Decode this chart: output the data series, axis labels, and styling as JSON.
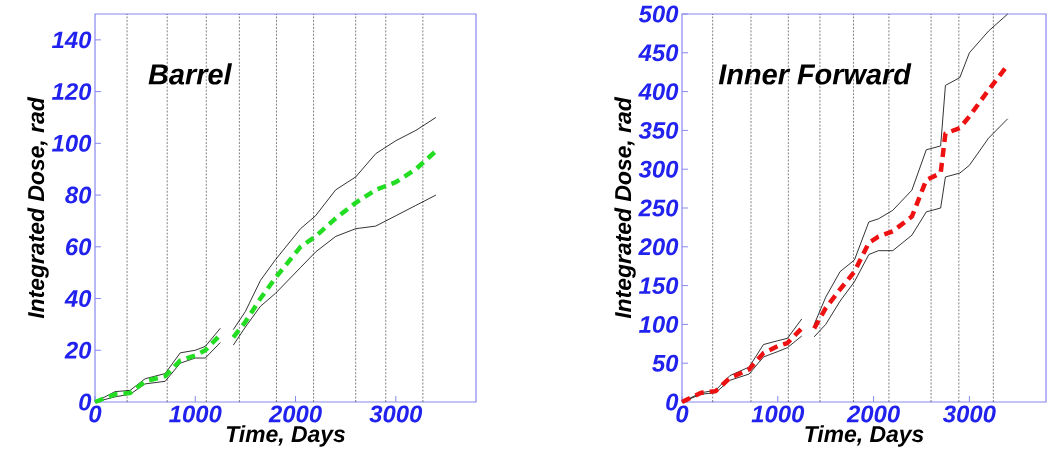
{
  "chart_data": [
    {
      "type": "line",
      "title": "Barrel",
      "xlabel": "Time, Days",
      "ylabel": "Integrated  Dose,  *rad*",
      "x": [
        0,
        200,
        350,
        500,
        700,
        850,
        1000,
        1100,
        1250,
        1300,
        1380,
        1500,
        1650,
        1800,
        2050,
        2200,
        2400,
        2600,
        2800,
        3000,
        3200,
        3400
      ],
      "series": [
        {
          "color": "#000000",
          "line_style": "solid",
          "values": [
            0,
            4,
            4.5,
            9,
            11,
            19,
            20,
            21.5,
            28.5,
            null,
            28,
            35,
            47,
            55,
            67,
            72,
            82,
            87,
            96,
            101,
            105,
            110
          ]
        },
        {
          "color": "#000000",
          "line_style": "solid",
          "values": [
            0,
            2,
            3,
            7,
            8,
            15,
            17,
            17,
            23,
            null,
            22,
            29,
            37,
            42,
            52,
            58,
            64,
            67,
            68,
            72,
            76,
            80
          ]
        },
        {
          "color": "#22dd22",
          "line_style": "dashed",
          "values": [
            0,
            3,
            3.5,
            8,
            10,
            16,
            18,
            20,
            26,
            null,
            25,
            31,
            40,
            48,
            60,
            64,
            71,
            77,
            82,
            85,
            90,
            97
          ]
        }
      ],
      "xlim": [
        0,
        3800
      ],
      "ylim": [
        0,
        150
      ],
      "xticks": [
        0,
        1000,
        2000,
        3000
      ],
      "yticks": [
        0,
        20,
        40,
        60,
        80,
        100,
        120,
        140
      ],
      "ref_lines": [
        {
          "axis": "x",
          "value": 320,
          "line_style": "dashed"
        },
        {
          "axis": "x",
          "value": 720,
          "line_style": "dashed"
        },
        {
          "axis": "x",
          "value": 1110,
          "line_style": "dashed"
        },
        {
          "axis": "x",
          "value": 1440,
          "line_style": "dashed"
        },
        {
          "axis": "x",
          "value": 1810,
          "line_style": "dashed"
        },
        {
          "axis": "x",
          "value": 2180,
          "line_style": "dashed"
        },
        {
          "axis": "x",
          "value": 2600,
          "line_style": "dashed"
        },
        {
          "axis": "x",
          "value": 2900,
          "line_style": "dashed"
        },
        {
          "axis": "x",
          "value": 3270,
          "line_style": "dashed"
        }
      ]
    },
    {
      "type": "line",
      "title": "Inner Forward",
      "xlabel": "Time, Days",
      "ylabel": "Integrated  Dose,  *rad*",
      "x": [
        0,
        200,
        350,
        500,
        700,
        850,
        1000,
        1100,
        1250,
        1300,
        1380,
        1500,
        1650,
        1800,
        1950,
        2050,
        2200,
        2400,
        2550,
        2700,
        2750,
        2900,
        3000,
        3200,
        3400
      ],
      "series": [
        {
          "color": "#000000",
          "line_style": "solid",
          "values": [
            0,
            12,
            15,
            34,
            45,
            74,
            79,
            82,
            107,
            null,
            100,
            135,
            168,
            183,
            232,
            236,
            247,
            273,
            325,
            330,
            408,
            418,
            450,
            478,
            500
          ]
        },
        {
          "color": "#000000",
          "line_style": "solid",
          "values": [
            0,
            10,
            12,
            28,
            36,
            58,
            65,
            70,
            85,
            null,
            84,
            100,
            130,
            155,
            190,
            195,
            195,
            215,
            245,
            250,
            290,
            295,
            305,
            340,
            365
          ]
        },
        {
          "color": "#ee1111",
          "line_style": "dashed",
          "values": [
            0,
            12,
            14,
            31,
            42,
            63,
            72,
            76,
            95,
            null,
            95,
            121,
            145,
            168,
            205,
            213,
            220,
            239,
            286,
            295,
            346,
            353,
            368,
            402,
            434
          ]
        }
      ],
      "xlim": [
        0,
        3800
      ],
      "ylim": [
        0,
        500
      ],
      "xticks": [
        0,
        1000,
        2000,
        3000
      ],
      "yticks": [
        0,
        50,
        100,
        150,
        200,
        250,
        300,
        350,
        400,
        450,
        500
      ],
      "ref_lines": [
        {
          "axis": "x",
          "value": 320,
          "line_style": "dashed"
        },
        {
          "axis": "x",
          "value": 720,
          "line_style": "dashed"
        },
        {
          "axis": "x",
          "value": 1110,
          "line_style": "dashed"
        },
        {
          "axis": "x",
          "value": 1440,
          "line_style": "dashed"
        },
        {
          "axis": "x",
          "value": 1790,
          "line_style": "dashed"
        },
        {
          "axis": "x",
          "value": 2160,
          "line_style": "dashed"
        },
        {
          "axis": "x",
          "value": 2600,
          "line_style": "dashed"
        },
        {
          "axis": "x",
          "value": 2890,
          "line_style": "dashed"
        },
        {
          "axis": "x",
          "value": 3250,
          "line_style": "dashed"
        }
      ]
    }
  ]
}
